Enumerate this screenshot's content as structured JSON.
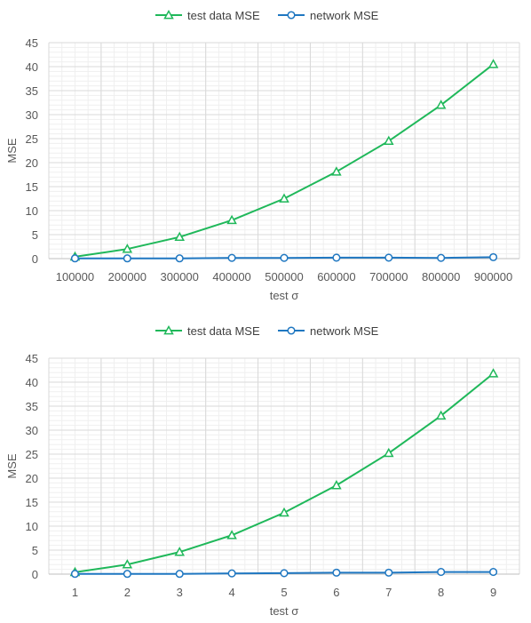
{
  "chart_data": [
    {
      "type": "line",
      "title": "",
      "xlabel": "test σ",
      "ylabel": "MSE",
      "ylim": [
        0,
        45
      ],
      "yticks": [
        0,
        5,
        10,
        15,
        20,
        25,
        30,
        35,
        40,
        45
      ],
      "grid": true,
      "minor_grid": true,
      "legend_position": "top",
      "categories": [
        "100000",
        "200000",
        "300000",
        "400000",
        "500000",
        "600000",
        "700000",
        "800000",
        "900000"
      ],
      "series": [
        {
          "name": "test data MSE",
          "marker": "triangle",
          "color": "#1fb85a",
          "values": [
            0.4,
            2.0,
            4.5,
            8.0,
            12.5,
            18.1,
            24.5,
            32.0,
            40.5
          ]
        },
        {
          "name": "network MSE",
          "marker": "circle",
          "color": "#1f77c1",
          "values": [
            0.05,
            0.05,
            0.05,
            0.15,
            0.15,
            0.2,
            0.2,
            0.15,
            0.3
          ]
        }
      ]
    },
    {
      "type": "line",
      "title": "",
      "xlabel": "test σ",
      "ylabel": "MSE",
      "ylim": [
        0,
        45
      ],
      "yticks": [
        0,
        5,
        10,
        15,
        20,
        25,
        30,
        35,
        40,
        45
      ],
      "grid": true,
      "minor_grid": true,
      "legend_position": "top",
      "categories": [
        "1",
        "2",
        "3",
        "4",
        "5",
        "6",
        "7",
        "8",
        "9"
      ],
      "series": [
        {
          "name": "test data MSE",
          "marker": "triangle",
          "color": "#1fb85a",
          "values": [
            0.4,
            2.0,
            4.6,
            8.1,
            12.8,
            18.5,
            25.2,
            33.0,
            41.8
          ]
        },
        {
          "name": "network MSE",
          "marker": "circle",
          "color": "#1f77c1",
          "values": [
            0.05,
            0.05,
            0.05,
            0.15,
            0.2,
            0.3,
            0.3,
            0.45,
            0.45
          ]
        }
      ]
    }
  ]
}
